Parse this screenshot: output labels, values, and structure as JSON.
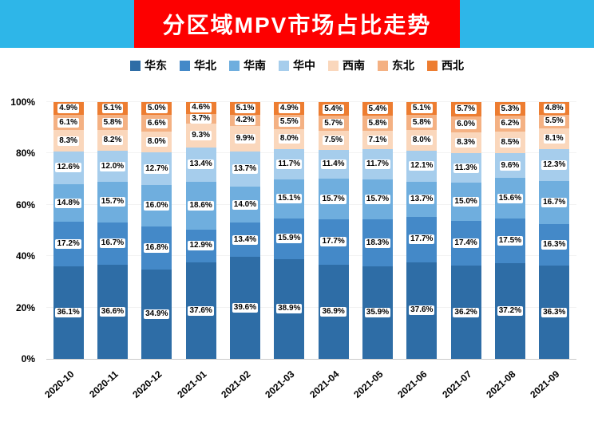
{
  "header": {
    "title": "分区域MPV市场占比走势",
    "banner_color": "#fd0000",
    "side_strip_color": "#2eb6e8"
  },
  "chart_data": {
    "type": "bar",
    "stacked": true,
    "percent_stacked": true,
    "title": "分区域MPV市场占比走势",
    "xlabel": "",
    "ylabel": "",
    "ylim": [
      0,
      100
    ],
    "legend_position": "top",
    "grid": false,
    "y_ticks": [
      "0%",
      "20%",
      "40%",
      "60%",
      "80%",
      "100%"
    ],
    "categories": [
      "2020-10",
      "2020-11",
      "2020-12",
      "2021-01",
      "2021-02",
      "2021-03",
      "2021-04",
      "2021-05",
      "2021-06",
      "2021-07",
      "2021-08",
      "2021-09"
    ],
    "series": [
      {
        "name": "华东",
        "color": "#2e6da6",
        "values": [
          36.1,
          36.6,
          34.9,
          37.6,
          39.6,
          38.9,
          36.9,
          35.9,
          37.6,
          36.2,
          37.2,
          36.3
        ]
      },
      {
        "name": "华北",
        "color": "#4489c8",
        "values": [
          17.2,
          16.7,
          16.8,
          12.9,
          13.4,
          15.9,
          17.7,
          18.3,
          17.7,
          17.4,
          17.5,
          16.3
        ]
      },
      {
        "name": "华南",
        "color": "#6faede",
        "values": [
          14.8,
          15.7,
          16.0,
          18.6,
          14.0,
          15.1,
          15.7,
          15.7,
          13.7,
          15.0,
          15.6,
          16.7
        ]
      },
      {
        "name": "华中",
        "color": "#a6cdec",
        "values": [
          12.6,
          12.0,
          12.7,
          13.4,
          13.7,
          11.7,
          11.4,
          11.7,
          12.1,
          11.3,
          9.6,
          12.3
        ]
      },
      {
        "name": "西南",
        "color": "#fad7bc",
        "values": [
          8.3,
          8.2,
          8.0,
          9.3,
          9.9,
          8.0,
          7.5,
          7.1,
          8.0,
          8.3,
          8.5,
          8.1
        ]
      },
      {
        "name": "东北",
        "color": "#f4b183",
        "values": [
          6.1,
          5.8,
          6.6,
          3.7,
          4.2,
          5.5,
          5.7,
          5.8,
          5.8,
          6.0,
          6.2,
          5.5
        ]
      },
      {
        "name": "西北",
        "color": "#ed7d31",
        "values": [
          4.9,
          5.1,
          5.0,
          4.6,
          5.1,
          4.9,
          5.4,
          5.4,
          5.1,
          5.7,
          5.3,
          4.8
        ]
      }
    ]
  }
}
